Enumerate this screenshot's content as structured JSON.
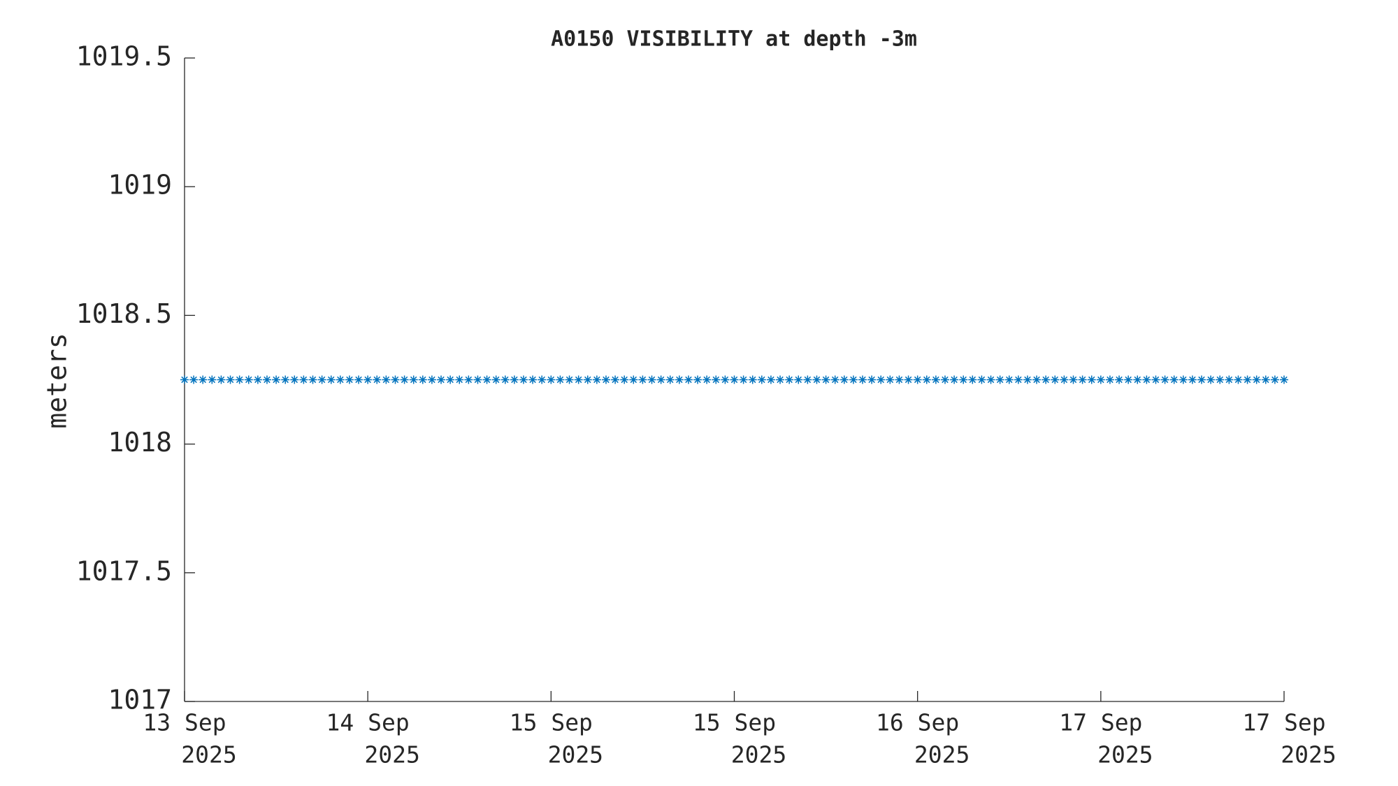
{
  "chart_data": {
    "type": "line",
    "title": "A0150 VISIBILITY at depth -3m",
    "ylabel": "meters",
    "xtick_labels": [
      [
        "13 Sep",
        "2025"
      ],
      [
        "14 Sep",
        "2025"
      ],
      [
        "15 Sep",
        "2025"
      ],
      [
        "15 Sep",
        "2025"
      ],
      [
        "16 Sep",
        "2025"
      ],
      [
        "17 Sep",
        "2025"
      ],
      [
        "17 Sep",
        "2025"
      ]
    ],
    "ylim": [
      1017,
      1019.5
    ],
    "yticks": [
      1017,
      1017.5,
      1018,
      1018.5,
      1019,
      1019.5
    ],
    "series": [
      {
        "color": "#0072bd",
        "marker": "asterisk",
        "values": [
          1018.25,
          1018.25,
          1018.25,
          1018.25,
          1018.25,
          1018.25,
          1018.25,
          1018.25,
          1018.25,
          1018.25,
          1018.25,
          1018.25,
          1018.25,
          1018.25,
          1018.25,
          1018.25,
          1018.25,
          1018.25,
          1018.25,
          1018.25,
          1018.25,
          1018.25,
          1018.25,
          1018.25,
          1018.25,
          1018.25,
          1018.25,
          1018.25,
          1018.25,
          1018.25,
          1018.25,
          1018.25,
          1018.25,
          1018.25,
          1018.25,
          1018.25,
          1018.25,
          1018.25,
          1018.25,
          1018.25,
          1018.25,
          1018.25,
          1018.25,
          1018.25,
          1018.25,
          1018.25,
          1018.25,
          1018.25,
          1018.25,
          1018.25,
          1018.25,
          1018.25,
          1018.25,
          1018.25,
          1018.25,
          1018.25,
          1018.25,
          1018.25,
          1018.25,
          1018.25,
          1018.25,
          1018.25,
          1018.25,
          1018.25,
          1018.25,
          1018.25,
          1018.25,
          1018.25,
          1018.25,
          1018.25,
          1018.25,
          1018.25,
          1018.25,
          1018.25,
          1018.25,
          1018.25,
          1018.25,
          1018.25,
          1018.25,
          1018.25,
          1018.25,
          1018.25,
          1018.25,
          1018.25,
          1018.25,
          1018.25,
          1018.25,
          1018.25,
          1018.25,
          1018.25,
          1018.25,
          1018.25,
          1018.25,
          1018.25,
          1018.25,
          1018.25,
          1018.25,
          1018.25,
          1018.25,
          1018.25,
          1018.25,
          1018.25,
          1018.25,
          1018.25,
          1018.25,
          1018.25,
          1018.25,
          1018.25,
          1018.25,
          1018.25,
          1018.25,
          1018.25,
          1018.25,
          1018.25,
          1018.25,
          1018.25,
          1018.25,
          1018.25,
          1018.25,
          1018.25,
          1018.25
        ]
      }
    ]
  }
}
